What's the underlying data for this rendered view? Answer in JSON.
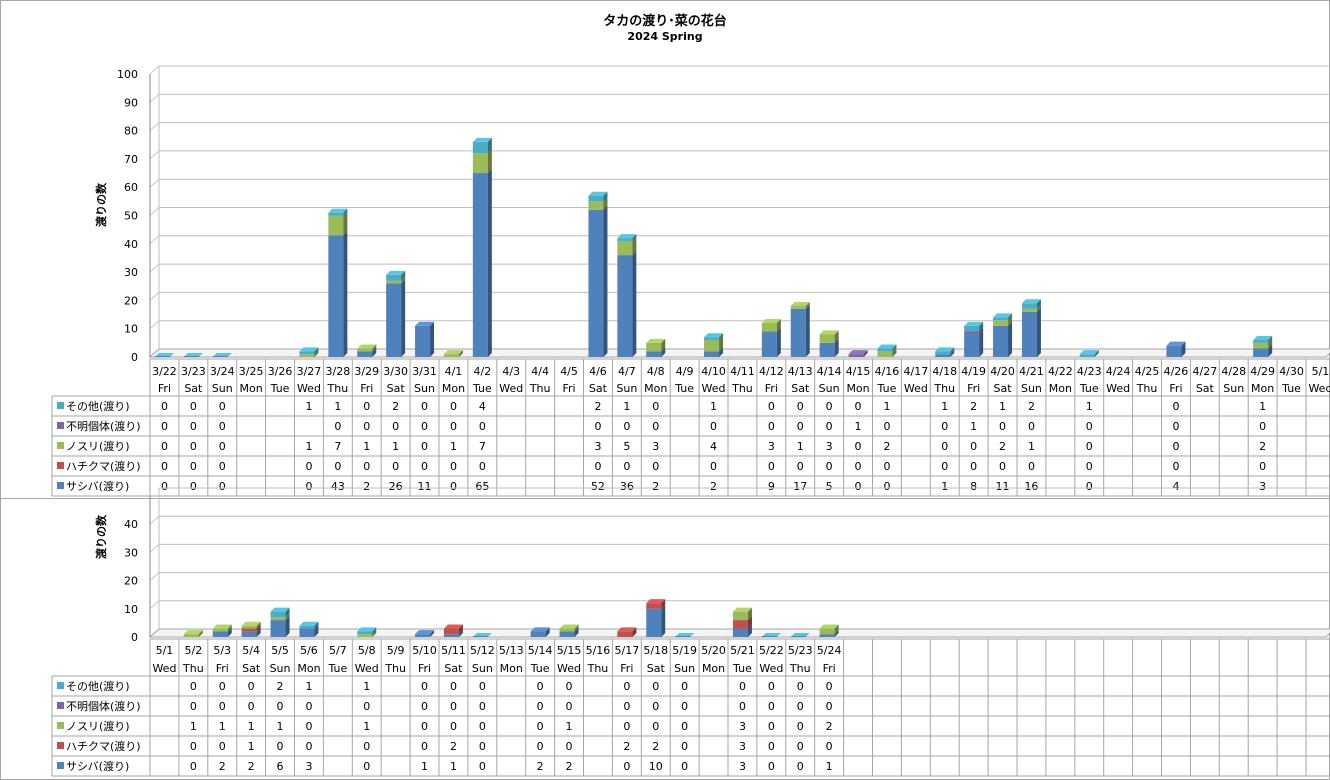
{
  "title": "タカの渡り･菜の花台",
  "subtitle": "2024 Spring",
  "chart_data": [
    {
      "type": "bar",
      "stacked": true,
      "ylabel": "渡りの数",
      "ylim": [
        0,
        100
      ],
      "yticks": [
        0,
        10,
        20,
        30,
        40,
        50,
        60,
        70,
        80,
        90,
        100
      ],
      "dates": [
        "3/22",
        "3/23",
        "3/24",
        "3/25",
        "3/26",
        "3/27",
        "3/28",
        "3/29",
        "3/30",
        "3/31",
        "4/1",
        "4/2",
        "4/3",
        "4/4",
        "4/5",
        "4/6",
        "4/7",
        "4/8",
        "4/9",
        "4/10",
        "4/11",
        "4/12",
        "4/13",
        "4/14",
        "4/15",
        "4/16",
        "4/17",
        "4/18",
        "4/19",
        "4/20",
        "4/21",
        "4/22",
        "4/23",
        "4/24",
        "4/25",
        "4/26",
        "4/27",
        "4/28",
        "4/29",
        "4/30",
        "5/1"
      ],
      "weekdays": [
        "Fri",
        "Sat",
        "Sun",
        "Mon",
        "Tue",
        "Wed",
        "Thu",
        "Fri",
        "Sat",
        "Sun",
        "Mon",
        "Tue",
        "Wed",
        "Thu",
        "Fri",
        "Sat",
        "Sun",
        "Mon",
        "Tue",
        "Wed",
        "Thu",
        "Fri",
        "Sat",
        "Sun",
        "Mon",
        "Tue",
        "Wed",
        "Thu",
        "Fri",
        "Sat",
        "Sun",
        "Mon",
        "Tue",
        "Wed",
        "Thu",
        "Fri",
        "Sat",
        "Sun",
        "Mon",
        "Tue",
        "Wed"
      ],
      "series": [
        {
          "name": "その他(渡り)",
          "color": "#4bacc6",
          "values": [
            0,
            0,
            0,
            null,
            null,
            1,
            1,
            0,
            2,
            0,
            0,
            4,
            null,
            null,
            null,
            2,
            1,
            0,
            null,
            1,
            null,
            0,
            0,
            0,
            0,
            1,
            null,
            1,
            2,
            1,
            2,
            null,
            1,
            null,
            null,
            0,
            null,
            null,
            1,
            null,
            null
          ]
        },
        {
          "name": "不明個体(渡り)",
          "color": "#8064a2",
          "values": [
            0,
            0,
            0,
            null,
            null,
            null,
            0,
            0,
            0,
            0,
            0,
            0,
            null,
            null,
            null,
            0,
            0,
            0,
            null,
            0,
            null,
            0,
            0,
            0,
            1,
            0,
            null,
            0,
            1,
            0,
            0,
            null,
            0,
            null,
            null,
            0,
            null,
            null,
            0,
            null,
            null
          ]
        },
        {
          "name": "ノスリ(渡り)",
          "color": "#9bbb59",
          "values": [
            0,
            0,
            0,
            null,
            null,
            1,
            7,
            1,
            1,
            0,
            1,
            7,
            null,
            null,
            null,
            3,
            5,
            3,
            null,
            4,
            null,
            3,
            1,
            3,
            0,
            2,
            null,
            0,
            0,
            2,
            1,
            null,
            0,
            null,
            null,
            0,
            null,
            null,
            2,
            null,
            null
          ]
        },
        {
          "name": "ハチクマ(渡り)",
          "color": "#c0504d",
          "values": [
            0,
            0,
            0,
            null,
            null,
            0,
            0,
            0,
            0,
            0,
            0,
            0,
            null,
            null,
            null,
            0,
            0,
            0,
            null,
            0,
            null,
            0,
            0,
            0,
            0,
            0,
            null,
            0,
            0,
            0,
            0,
            null,
            0,
            null,
            null,
            0,
            null,
            null,
            0,
            null,
            null
          ]
        },
        {
          "name": "サシバ(渡り)",
          "color": "#4f81bd",
          "values": [
            0,
            0,
            0,
            null,
            null,
            0,
            43,
            2,
            26,
            11,
            0,
            65,
            null,
            null,
            null,
            52,
            36,
            2,
            null,
            2,
            null,
            9,
            17,
            5,
            0,
            0,
            null,
            1,
            8,
            11,
            16,
            null,
            0,
            null,
            null,
            4,
            null,
            null,
            3,
            null,
            null
          ]
        }
      ]
    },
    {
      "type": "bar",
      "stacked": true,
      "ylabel": "渡りの数",
      "ylim": [
        0,
        50
      ],
      "yticks": [
        0,
        10,
        20,
        30,
        40
      ],
      "dates": [
        "5/1",
        "5/2",
        "5/3",
        "5/4",
        "5/5",
        "5/6",
        "5/7",
        "5/8",
        "5/9",
        "5/10",
        "5/11",
        "5/12",
        "5/13",
        "5/14",
        "5/15",
        "5/16",
        "5/17",
        "5/18",
        "5/19",
        "5/20",
        "5/21",
        "5/22",
        "5/23",
        "5/24",
        "",
        "",
        "",
        "",
        "",
        "",
        "",
        "",
        "",
        "",
        "",
        "",
        "",
        "",
        "",
        "",
        ""
      ],
      "weekdays": [
        "Wed",
        "Thu",
        "Fri",
        "Sat",
        "Sun",
        "Mon",
        "Tue",
        "Wed",
        "Thu",
        "Fri",
        "Sat",
        "Sun",
        "Mon",
        "Tue",
        "Wed",
        "Thu",
        "Fri",
        "Sat",
        "Sun",
        "Mon",
        "Tue",
        "Wed",
        "Thu",
        "Fri",
        "",
        "",
        "",
        "",
        "",
        "",
        "",
        "",
        "",
        "",
        "",
        "",
        "",
        "",
        "",
        "",
        ""
      ],
      "series": [
        {
          "name": "その他(渡り)",
          "color": "#4bacc6",
          "values": [
            null,
            0,
            0,
            0,
            2,
            1,
            null,
            1,
            null,
            0,
            0,
            0,
            null,
            0,
            0,
            null,
            0,
            0,
            0,
            null,
            0,
            0,
            0,
            0,
            null,
            null,
            null,
            null,
            null,
            null,
            null,
            null,
            null,
            null,
            null,
            null,
            null,
            null,
            null,
            null,
            null
          ]
        },
        {
          "name": "不明個体(渡り)",
          "color": "#8064a2",
          "values": [
            null,
            0,
            0,
            0,
            0,
            0,
            null,
            0,
            null,
            0,
            0,
            0,
            null,
            0,
            0,
            null,
            0,
            0,
            0,
            null,
            0,
            0,
            0,
            0,
            null,
            null,
            null,
            null,
            null,
            null,
            null,
            null,
            null,
            null,
            null,
            null,
            null,
            null,
            null,
            null,
            null
          ]
        },
        {
          "name": "ノスリ(渡り)",
          "color": "#9bbb59",
          "values": [
            null,
            1,
            1,
            1,
            1,
            0,
            null,
            1,
            null,
            0,
            0,
            0,
            null,
            0,
            1,
            null,
            0,
            0,
            0,
            null,
            3,
            0,
            0,
            2,
            null,
            null,
            null,
            null,
            null,
            null,
            null,
            null,
            null,
            null,
            null,
            null,
            null,
            null,
            null,
            null,
            null
          ]
        },
        {
          "name": "ハチクマ(渡り)",
          "color": "#c0504d",
          "values": [
            null,
            0,
            0,
            1,
            0,
            0,
            null,
            0,
            null,
            0,
            2,
            0,
            null,
            0,
            0,
            null,
            2,
            2,
            0,
            null,
            3,
            0,
            0,
            0,
            null,
            null,
            null,
            null,
            null,
            null,
            null,
            null,
            null,
            null,
            null,
            null,
            null,
            null,
            null,
            null,
            null
          ]
        },
        {
          "name": "サシバ(渡り)",
          "color": "#4f81bd",
          "values": [
            null,
            0,
            2,
            2,
            6,
            3,
            null,
            0,
            null,
            1,
            1,
            0,
            null,
            2,
            2,
            null,
            0,
            10,
            0,
            null,
            3,
            0,
            0,
            1,
            null,
            null,
            null,
            null,
            null,
            null,
            null,
            null,
            null,
            null,
            null,
            null,
            null,
            null,
            null,
            null,
            null
          ]
        }
      ]
    }
  ]
}
